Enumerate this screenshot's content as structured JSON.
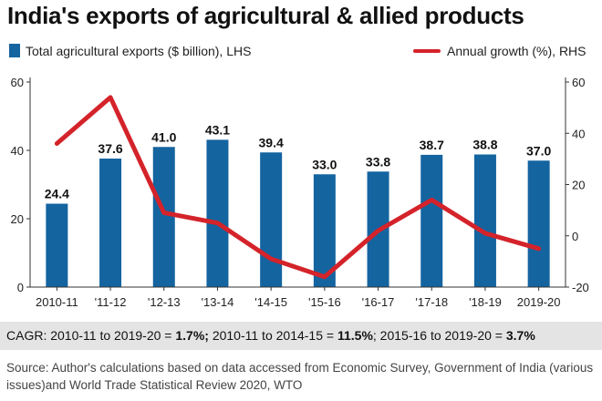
{
  "title": "India's exports of agricultural & allied products",
  "legend": {
    "bars_label": "Total agricultural exports ($ billion), LHS",
    "line_label": "Annual growth (%), RHS"
  },
  "colors": {
    "bars": "#1464a0",
    "line": "#d4232a",
    "axis": "#333333",
    "cagr_bg": "#e4e4e4"
  },
  "chart_data": {
    "type": "bar+line",
    "title": "India's exports of agricultural & allied products",
    "categories": [
      "2010-11",
      "'11-12",
      "'12-13",
      "'13-14",
      "'14-15",
      "'15-16",
      "'16-17",
      "'17-18",
      "'18-19",
      "2019-20"
    ],
    "series": [
      {
        "name": "Total agricultural exports ($ billion), LHS",
        "type": "bar",
        "axis": "left",
        "values": [
          24.4,
          37.6,
          41.0,
          43.1,
          39.4,
          33.0,
          33.8,
          38.7,
          38.8,
          37.0
        ],
        "labels": [
          "24.4",
          "37.6",
          "41.0",
          "43.1",
          "39.4",
          "33.0",
          "33.8",
          "38.7",
          "38.8",
          "37.0"
        ]
      },
      {
        "name": "Annual growth (%), RHS",
        "type": "line",
        "axis": "right",
        "values": [
          36,
          54,
          9,
          5,
          -9,
          -16,
          2,
          14,
          1,
          -5
        ]
      }
    ],
    "left_axis": {
      "range": [
        0,
        60
      ],
      "ticks": [
        0,
        20,
        40,
        60
      ],
      "tick_labels": [
        "0",
        "20",
        "40",
        "60"
      ]
    },
    "right_axis": {
      "range": [
        -20,
        60
      ],
      "ticks": [
        -20,
        0,
        20,
        40,
        60
      ],
      "tick_labels": [
        "-20",
        "0",
        "20",
        "40",
        "60"
      ]
    },
    "grid": false
  },
  "cagr": {
    "part1": "CAGR: 2010-11 to 2019-20 = ",
    "value1": "1.7%;",
    "part2": " 2010-11 to 2014-15 = ",
    "value2": "11.5%",
    "part3": "; 2015-16 to 2019-20 = ",
    "value3": "3.7%"
  },
  "source": "Source: Author's calculations based on data accessed from Economic Survey, Government of India (various issues)and World Trade Statistical Review 2020, WTO"
}
